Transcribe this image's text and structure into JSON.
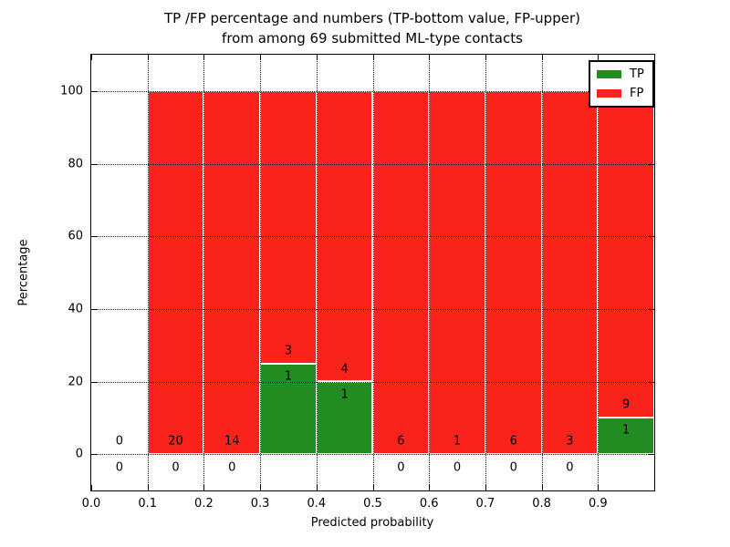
{
  "figure": {
    "title_line1": "TP /FP percentage and numbers (TP-bottom value, FP-upper)",
    "title_line2": "from among 69 submitted ML-type contacts",
    "background_color": "#ffffff"
  },
  "chart_data": {
    "type": "bar",
    "stacked": true,
    "title": "TP /FP percentage and numbers (TP-bottom value, FP-upper)\nfrom among 69 submitted ML-type contacts",
    "xlabel": "Predicted probability",
    "ylabel": "Percentage",
    "xlim": [
      0.0,
      1.0
    ],
    "ylim": [
      -10,
      110
    ],
    "x_ticks": [
      0.0,
      0.1,
      0.2,
      0.3,
      0.4,
      0.5,
      0.6,
      0.7,
      0.8,
      0.9
    ],
    "x_tick_labels": [
      "0.0",
      "0.1",
      "0.2",
      "0.3",
      "0.4",
      "0.5",
      "0.6",
      "0.7",
      "0.8",
      "0.9"
    ],
    "y_ticks": [
      0,
      20,
      40,
      60,
      80,
      100
    ],
    "y_tick_labels": [
      "0",
      "20",
      "40",
      "60",
      "80",
      "100"
    ],
    "grid": "dotted",
    "grid_above_bars": true,
    "bin_width": 0.1,
    "total_contacts": 69,
    "series": [
      {
        "name": "TP",
        "color": "#228b22"
      },
      {
        "name": "FP",
        "color": "#fa231c"
      }
    ],
    "bins": [
      {
        "x0": 0.0,
        "x1": 0.1,
        "tp_count": 0,
        "fp_count": 0,
        "tp_pct": 0,
        "fp_pct": 0
      },
      {
        "x0": 0.1,
        "x1": 0.2,
        "tp_count": 0,
        "fp_count": 20,
        "tp_pct": 0,
        "fp_pct": 100
      },
      {
        "x0": 0.2,
        "x1": 0.3,
        "tp_count": 0,
        "fp_count": 14,
        "tp_pct": 0,
        "fp_pct": 100
      },
      {
        "x0": 0.3,
        "x1": 0.4,
        "tp_count": 1,
        "fp_count": 3,
        "tp_pct": 25,
        "fp_pct": 75
      },
      {
        "x0": 0.4,
        "x1": 0.5,
        "tp_count": 1,
        "fp_count": 4,
        "tp_pct": 20,
        "fp_pct": 80
      },
      {
        "x0": 0.5,
        "x1": 0.6,
        "tp_count": 0,
        "fp_count": 6,
        "tp_pct": 0,
        "fp_pct": 100
      },
      {
        "x0": 0.6,
        "x1": 0.7,
        "tp_count": 0,
        "fp_count": 1,
        "tp_pct": 0,
        "fp_pct": 100
      },
      {
        "x0": 0.7,
        "x1": 0.8,
        "tp_count": 0,
        "fp_count": 6,
        "tp_pct": 0,
        "fp_pct": 100
      },
      {
        "x0": 0.8,
        "x1": 0.9,
        "tp_count": 0,
        "fp_count": 3,
        "tp_pct": 0,
        "fp_pct": 100
      },
      {
        "x0": 0.9,
        "x1": 1.0,
        "tp_count": 1,
        "fp_count": 9,
        "tp_pct": 10,
        "fp_pct": 90
      }
    ],
    "legend": {
      "position": "upper right",
      "entries": [
        {
          "label": "TP",
          "color": "#228b22"
        },
        {
          "label": "FP",
          "color": "#fa231c"
        }
      ]
    }
  }
}
